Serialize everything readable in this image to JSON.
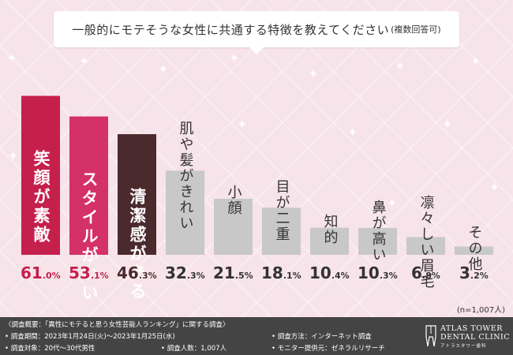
{
  "title": {
    "main": "一般的にモテそうな女性に共通する特徴を教えてください",
    "sub": "(複数回答可)"
  },
  "chart_data": {
    "type": "bar",
    "title": "一般的にモテそうな女性に共通する特徴を教えてください(複数回答可)",
    "categories": [
      "笑顔が素敵",
      "スタイルがいい",
      "清潔感がある",
      "肌や髪がきれい",
      "小顔",
      "目が二重",
      "知的",
      "鼻が高い",
      "凛々しい眉毛",
      "その他"
    ],
    "values": [
      61.0,
      53.1,
      46.3,
      32.3,
      21.5,
      18.1,
      10.4,
      10.3,
      6.8,
      3.2
    ],
    "unit": "%",
    "colors": [
      "#c51f4c",
      "#d43168",
      "#4a2a2d",
      "#c8c8c8",
      "#c8c8c8",
      "#c8c8c8",
      "#c8c8c8",
      "#c8c8c8",
      "#c8c8c8",
      "#c8c8c8"
    ],
    "value_colors": [
      "#c51f4c",
      "#c51f4c",
      "#4a2a2d",
      "#333333",
      "#333333",
      "#333333",
      "#333333",
      "#333333",
      "#333333",
      "#333333"
    ],
    "xlabel": "",
    "ylabel": "",
    "ylim": [
      0,
      66
    ],
    "grid": false,
    "legend": "none"
  },
  "n_label": "(n=1,007人)",
  "footer": {
    "line1": "〈調査概要：「異性にモテると思う女性芸能人ランキング」に関する調査〉",
    "period": "• 調査期間：2023年1月24日(火)〜2023年1月25日(水)",
    "method": "• 調査方法：インターネット調査",
    "target": "• 調査対象：20代〜30代男性",
    "count": "• 調査人数：1,007人",
    "provider": "• モニター提供元：ゼネラルリサーチ",
    "logo_name": "ATLAS TOWER\nDENTAL CLINIC",
    "logo_name_1": "ATLAS TOWER",
    "logo_name_2": "DENTAL CLINIC",
    "logo_sub": "アトラスタワー歯科"
  }
}
